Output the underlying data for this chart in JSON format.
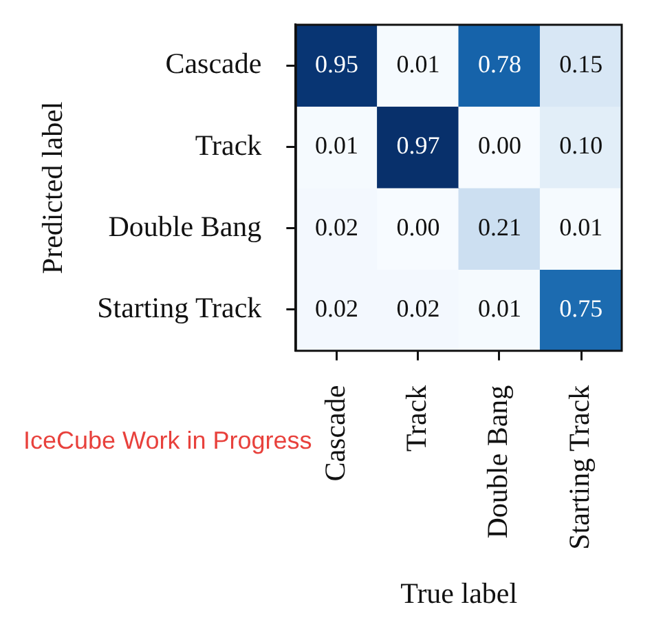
{
  "chart_data": {
    "type": "heatmap",
    "xlabel": "True label",
    "ylabel": "Predicted label",
    "categories": [
      "Cascade",
      "Track",
      "Double Bang",
      "Starting Track"
    ],
    "y_categories": [
      "Cascade",
      "Track",
      "Double Bang",
      "Starting Track"
    ],
    "cells": [
      [
        0.95,
        0.01,
        0.78,
        0.15
      ],
      [
        0.01,
        0.97,
        0.0,
        0.1
      ],
      [
        0.02,
        0.0,
        0.21,
        0.01
      ],
      [
        0.02,
        0.02,
        0.01,
        0.75
      ]
    ],
    "cell_labels": [
      [
        "0.95",
        "0.01",
        "0.78",
        "0.15"
      ],
      [
        "0.01",
        "0.97",
        "0.00",
        "0.10"
      ],
      [
        "0.02",
        "0.00",
        "0.21",
        "0.01"
      ],
      [
        "0.02",
        "0.02",
        "0.01",
        "0.75"
      ]
    ],
    "annotations": [
      "IceCube Work in Progress"
    ]
  }
}
